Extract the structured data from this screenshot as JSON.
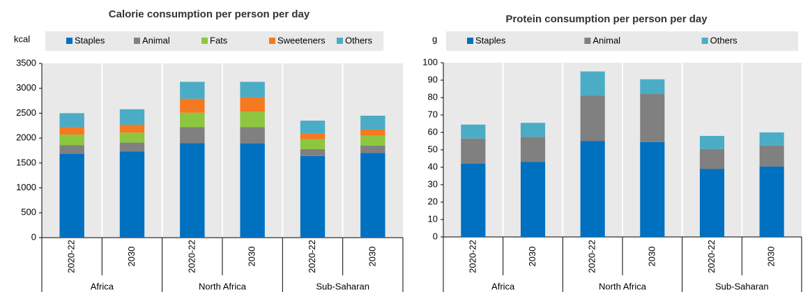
{
  "chart_data": [
    {
      "type": "bar",
      "stacked": true,
      "title": "Calorie consumption per person per day",
      "y_label": "kcal",
      "categories": [
        "2020-22",
        "2030",
        "2020-22",
        "2030",
        "2020-22",
        "2030"
      ],
      "groups": [
        "Africa",
        "North Africa",
        "Sub-Saharan"
      ],
      "series": [
        {
          "name": "Staples",
          "color": "#0070c0",
          "values": [
            1680,
            1730,
            1900,
            1890,
            1640,
            1700
          ]
        },
        {
          "name": "Animal",
          "color": "#808080",
          "values": [
            180,
            180,
            320,
            330,
            140,
            150
          ]
        },
        {
          "name": "Fats",
          "color": "#8dc63f",
          "values": [
            210,
            200,
            290,
            310,
            200,
            200
          ]
        },
        {
          "name": "Sweeteners",
          "color": "#f47920",
          "values": [
            150,
            160,
            280,
            290,
            110,
            120
          ]
        },
        {
          "name": "Others",
          "color": "#4bacc6",
          "values": [
            280,
            310,
            340,
            310,
            260,
            280
          ]
        }
      ],
      "ylim": [
        0,
        3500
      ],
      "yticks": [
        0,
        500,
        1000,
        1500,
        2000,
        2500,
        3000,
        3500
      ]
    },
    {
      "type": "bar",
      "stacked": true,
      "title": "Protein consumption per person per day",
      "y_label": "g",
      "categories": [
        "2020-22",
        "2030",
        "2020-22",
        "2030",
        "2020-22",
        "2030"
      ],
      "groups": [
        "Africa",
        "North Africa",
        "Sub-Saharan"
      ],
      "series": [
        {
          "name": "Staples",
          "color": "#0070c0",
          "values": [
            42,
            43,
            55,
            54.5,
            39,
            40.5
          ]
        },
        {
          "name": "Animal",
          "color": "#808080",
          "values": [
            14.5,
            14.5,
            26,
            27.5,
            11.5,
            12
          ]
        },
        {
          "name": "Others",
          "color": "#4bacc6",
          "values": [
            8,
            8,
            14,
            8.5,
            7.5,
            7.5
          ]
        }
      ],
      "ylim": [
        0,
        100
      ],
      "yticks": [
        0,
        10,
        20,
        30,
        40,
        50,
        60,
        70,
        80,
        90,
        100
      ]
    }
  ]
}
